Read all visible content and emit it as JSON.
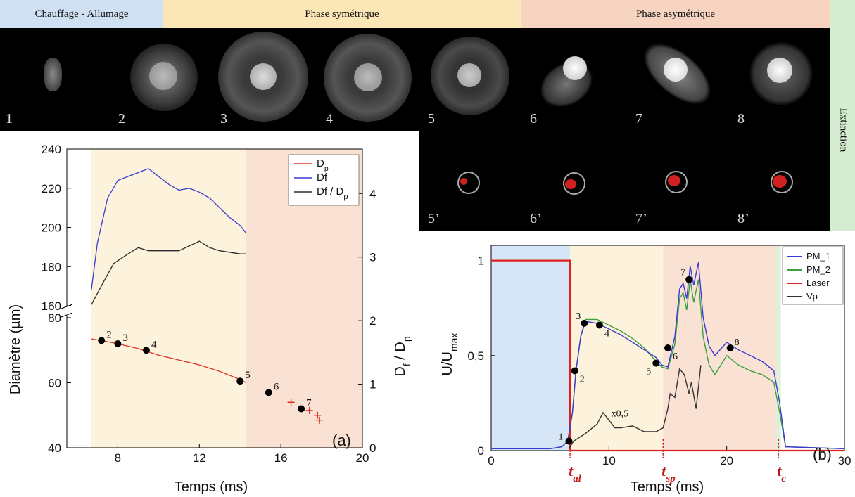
{
  "bands": [
    {
      "label": "Chauffage  - Allumage",
      "color": "#cfe0f3"
    },
    {
      "label": "Phase symétrique",
      "color": "#fbe6b5"
    },
    {
      "label": "Phase asymétrique",
      "color": "#f6d4c0"
    }
  ],
  "extinction_label": "Extinction",
  "frames_top": [
    "1",
    "2",
    "3",
    "4",
    "5",
    "6",
    "7",
    "8"
  ],
  "frames_bottom": [
    "5’",
    "6’",
    "7’",
    "8’"
  ],
  "chart_data": [
    {
      "type": "line",
      "panel_label": "(a)",
      "xlabel": "Temps (ms)",
      "ylabel_left": "Diamètre (µm)",
      "ylabel_right": "D_f / D_p",
      "xlim": [
        5.5,
        20
      ],
      "x_ticks": [
        8,
        12,
        16,
        20
      ],
      "y_left_ticks": [
        40,
        60,
        80,
        160,
        180,
        200,
        220,
        240
      ],
      "y_right_ticks": [
        0,
        1,
        2,
        3,
        4
      ],
      "legend": [
        "Dp",
        "Df",
        "Df / Dp"
      ],
      "legend_position": "top-right",
      "shaded_regions": [
        {
          "from": 6.7,
          "to": 14.3,
          "color": "#fdf3dc"
        },
        {
          "from": 14.3,
          "to": 20,
          "color": "#f9e1d4"
        }
      ],
      "series": [
        {
          "name": "Dp",
          "color": "#e03020",
          "axis": "left",
          "x": [
            6.7,
            7.2,
            8.0,
            9.0,
            10.0,
            11.0,
            12.0,
            13.0,
            14.0,
            14.3
          ],
          "y": [
            73.5,
            73.0,
            72.0,
            70.5,
            68.5,
            67.0,
            65.5,
            63.5,
            61.0,
            60.0
          ]
        },
        {
          "name": "Df",
          "color": "#3a3ad0",
          "axis": "left",
          "x": [
            6.7,
            7.0,
            7.5,
            8.0,
            8.5,
            9.0,
            9.5,
            10.0,
            10.5,
            11.0,
            11.5,
            12.0,
            12.5,
            13.0,
            13.5,
            14.0,
            14.3
          ],
          "y": [
            168,
            192,
            215,
            224,
            226,
            228,
            230,
            226,
            222,
            219,
            220,
            218,
            215,
            210,
            205,
            201,
            197
          ]
        },
        {
          "name": "Df / Dp",
          "color": "#2a2a2a",
          "axis": "right",
          "x": [
            6.7,
            7.2,
            7.8,
            8.5,
            9.0,
            9.5,
            10.0,
            11.0,
            12.0,
            12.5,
            13.0,
            14.0,
            14.3
          ],
          "y": [
            2.25,
            2.55,
            2.9,
            3.05,
            3.15,
            3.1,
            3.1,
            3.1,
            3.25,
            3.15,
            3.1,
            3.05,
            3.05
          ]
        }
      ],
      "points": [
        {
          "label": "2",
          "x": 7.2,
          "y": 73
        },
        {
          "label": "3",
          "x": 8.0,
          "y": 72
        },
        {
          "label": "4",
          "x": 9.4,
          "y": 70
        },
        {
          "label": "5",
          "x": 14.0,
          "y": 60.5
        },
        {
          "label": "6",
          "x": 15.4,
          "y": 57
        },
        {
          "label": "7",
          "x": 17.0,
          "y": 52
        }
      ],
      "crosses": [
        {
          "x": 16.5,
          "y": 54
        },
        {
          "x": 17.4,
          "y": 51.5
        },
        {
          "x": 17.8,
          "y": 50
        },
        {
          "x": 17.9,
          "y": 48.5
        }
      ]
    },
    {
      "type": "line",
      "panel_label": "(b)",
      "xlabel": "Temps (ms)",
      "ylabel": "U/U_max",
      "xlim": [
        0,
        30
      ],
      "ylim": [
        0,
        1.08
      ],
      "x_ticks": [
        0,
        10,
        20,
        30
      ],
      "y_ticks": [
        {
          "v": 0,
          "t": "0"
        },
        {
          "v": 0.5,
          "t": "0,5"
        },
        {
          "v": 1,
          "t": "1"
        }
      ],
      "legend": [
        "PM_1",
        "PM_2",
        "Laser",
        "Vp"
      ],
      "legend_position": "top-right",
      "time_markers": [
        "t_al",
        "t_sp",
        "t_c"
      ],
      "annotation": "x0,5",
      "shaded_regions": [
        {
          "from": 0,
          "to": 6.7,
          "color": "#d6e6f6"
        },
        {
          "from": 6.7,
          "to": 14.6,
          "color": "#fdf3dc"
        },
        {
          "from": 14.6,
          "to": 24.2,
          "color": "#f9e1d4"
        },
        {
          "from": 24.2,
          "to": 24.6,
          "color": "#dff0d8"
        }
      ],
      "series": [
        {
          "name": "PM_1",
          "color": "#3a3ad0",
          "x": [
            0,
            5,
            6.0,
            6.5,
            6.9,
            7.2,
            7.6,
            8.0,
            9.0,
            10.0,
            11.0,
            12.0,
            13.0,
            14.0,
            14.5,
            15.0,
            15.6,
            16.0,
            16.3,
            16.6,
            16.9,
            17.2,
            17.6,
            18.0,
            18.5,
            19.0,
            20.0,
            21.0,
            22.0,
            23.0,
            24.0,
            24.5,
            25.0,
            30
          ],
          "y": [
            0.01,
            0.01,
            0.02,
            0.05,
            0.2,
            0.42,
            0.6,
            0.68,
            0.67,
            0.64,
            0.61,
            0.57,
            0.53,
            0.49,
            0.45,
            0.44,
            0.6,
            0.85,
            0.88,
            0.8,
            0.97,
            0.87,
            0.99,
            0.7,
            0.55,
            0.5,
            0.57,
            0.53,
            0.5,
            0.47,
            0.42,
            0.25,
            0.02,
            0.01
          ]
        },
        {
          "name": "PM_2",
          "color": "#3aa040",
          "x": [
            0,
            5,
            6.0,
            6.5,
            6.9,
            7.2,
            7.6,
            8.0,
            9.0,
            10.0,
            11.0,
            12.0,
            13.0,
            14.0,
            14.5,
            15.0,
            15.6,
            16.0,
            16.3,
            16.6,
            16.9,
            17.2,
            17.6,
            18.0,
            18.5,
            19.0,
            20.0,
            21.0,
            22.0,
            23.0,
            24.0,
            24.5,
            25.0,
            30
          ],
          "y": [
            0.01,
            0.01,
            0.02,
            0.05,
            0.2,
            0.42,
            0.6,
            0.69,
            0.69,
            0.66,
            0.63,
            0.59,
            0.54,
            0.47,
            0.44,
            0.43,
            0.56,
            0.8,
            0.83,
            0.74,
            0.9,
            0.78,
            0.9,
            0.6,
            0.45,
            0.4,
            0.5,
            0.45,
            0.42,
            0.4,
            0.36,
            0.2,
            0.02,
            0.01
          ]
        },
        {
          "name": "Laser",
          "color": "#e02020",
          "x": [
            0,
            6.7,
            6.7,
            30
          ],
          "y": [
            1.0,
            1.0,
            0.0,
            0.0
          ]
        },
        {
          "name": "Vp",
          "color": "#333333",
          "x": [
            6.6,
            7.0,
            8.0,
            9.0,
            9.5,
            10.0,
            10.5,
            11.0,
            12.0,
            13.0,
            14.0,
            14.6,
            15.0,
            15.2,
            15.6,
            16.0,
            16.4,
            16.8,
            17.0,
            17.4,
            17.8
          ],
          "y": [
            0.01,
            0.05,
            0.09,
            0.14,
            0.2,
            0.16,
            0.12,
            0.12,
            0.13,
            0.1,
            0.1,
            0.12,
            0.22,
            0.3,
            0.28,
            0.43,
            0.4,
            0.3,
            0.36,
            0.22,
            0.45
          ]
        }
      ],
      "points": [
        {
          "label": "1",
          "x": 6.6,
          "y": 0.05
        },
        {
          "label": "2",
          "x": 7.1,
          "y": 0.42
        },
        {
          "label": "3",
          "x": 7.9,
          "y": 0.67
        },
        {
          "label": "4",
          "x": 9.2,
          "y": 0.66
        },
        {
          "label": "5",
          "x": 14.0,
          "y": 0.46
        },
        {
          "label": "6",
          "x": 15.0,
          "y": 0.54
        },
        {
          "label": "7",
          "x": 16.8,
          "y": 0.9
        },
        {
          "label": "8",
          "x": 20.3,
          "y": 0.54
        }
      ]
    }
  ]
}
